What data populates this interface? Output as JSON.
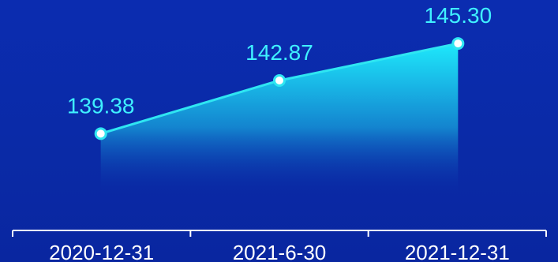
{
  "chart_data": {
    "type": "area",
    "categories": [
      "2020-12-31",
      "2021-6-30",
      "2021-12-31"
    ],
    "values": [
      139.38,
      142.87,
      145.3
    ],
    "data_labels": [
      "139.38",
      "142.87",
      "145.30"
    ],
    "title": "",
    "xlabel": "",
    "ylabel": "",
    "grid": false,
    "legend": "none",
    "colors": {
      "background": "#0a2aa8",
      "line": "#2fe6f2",
      "area_top": "#1ff2ff",
      "area_bottom": "#0a2aa8",
      "marker_fill": "#ffffff",
      "marker_stroke": "#2fe6f2",
      "data_label": "#3ff0ff",
      "axis": "#ffffff",
      "tick_label": "#ffffff"
    }
  }
}
